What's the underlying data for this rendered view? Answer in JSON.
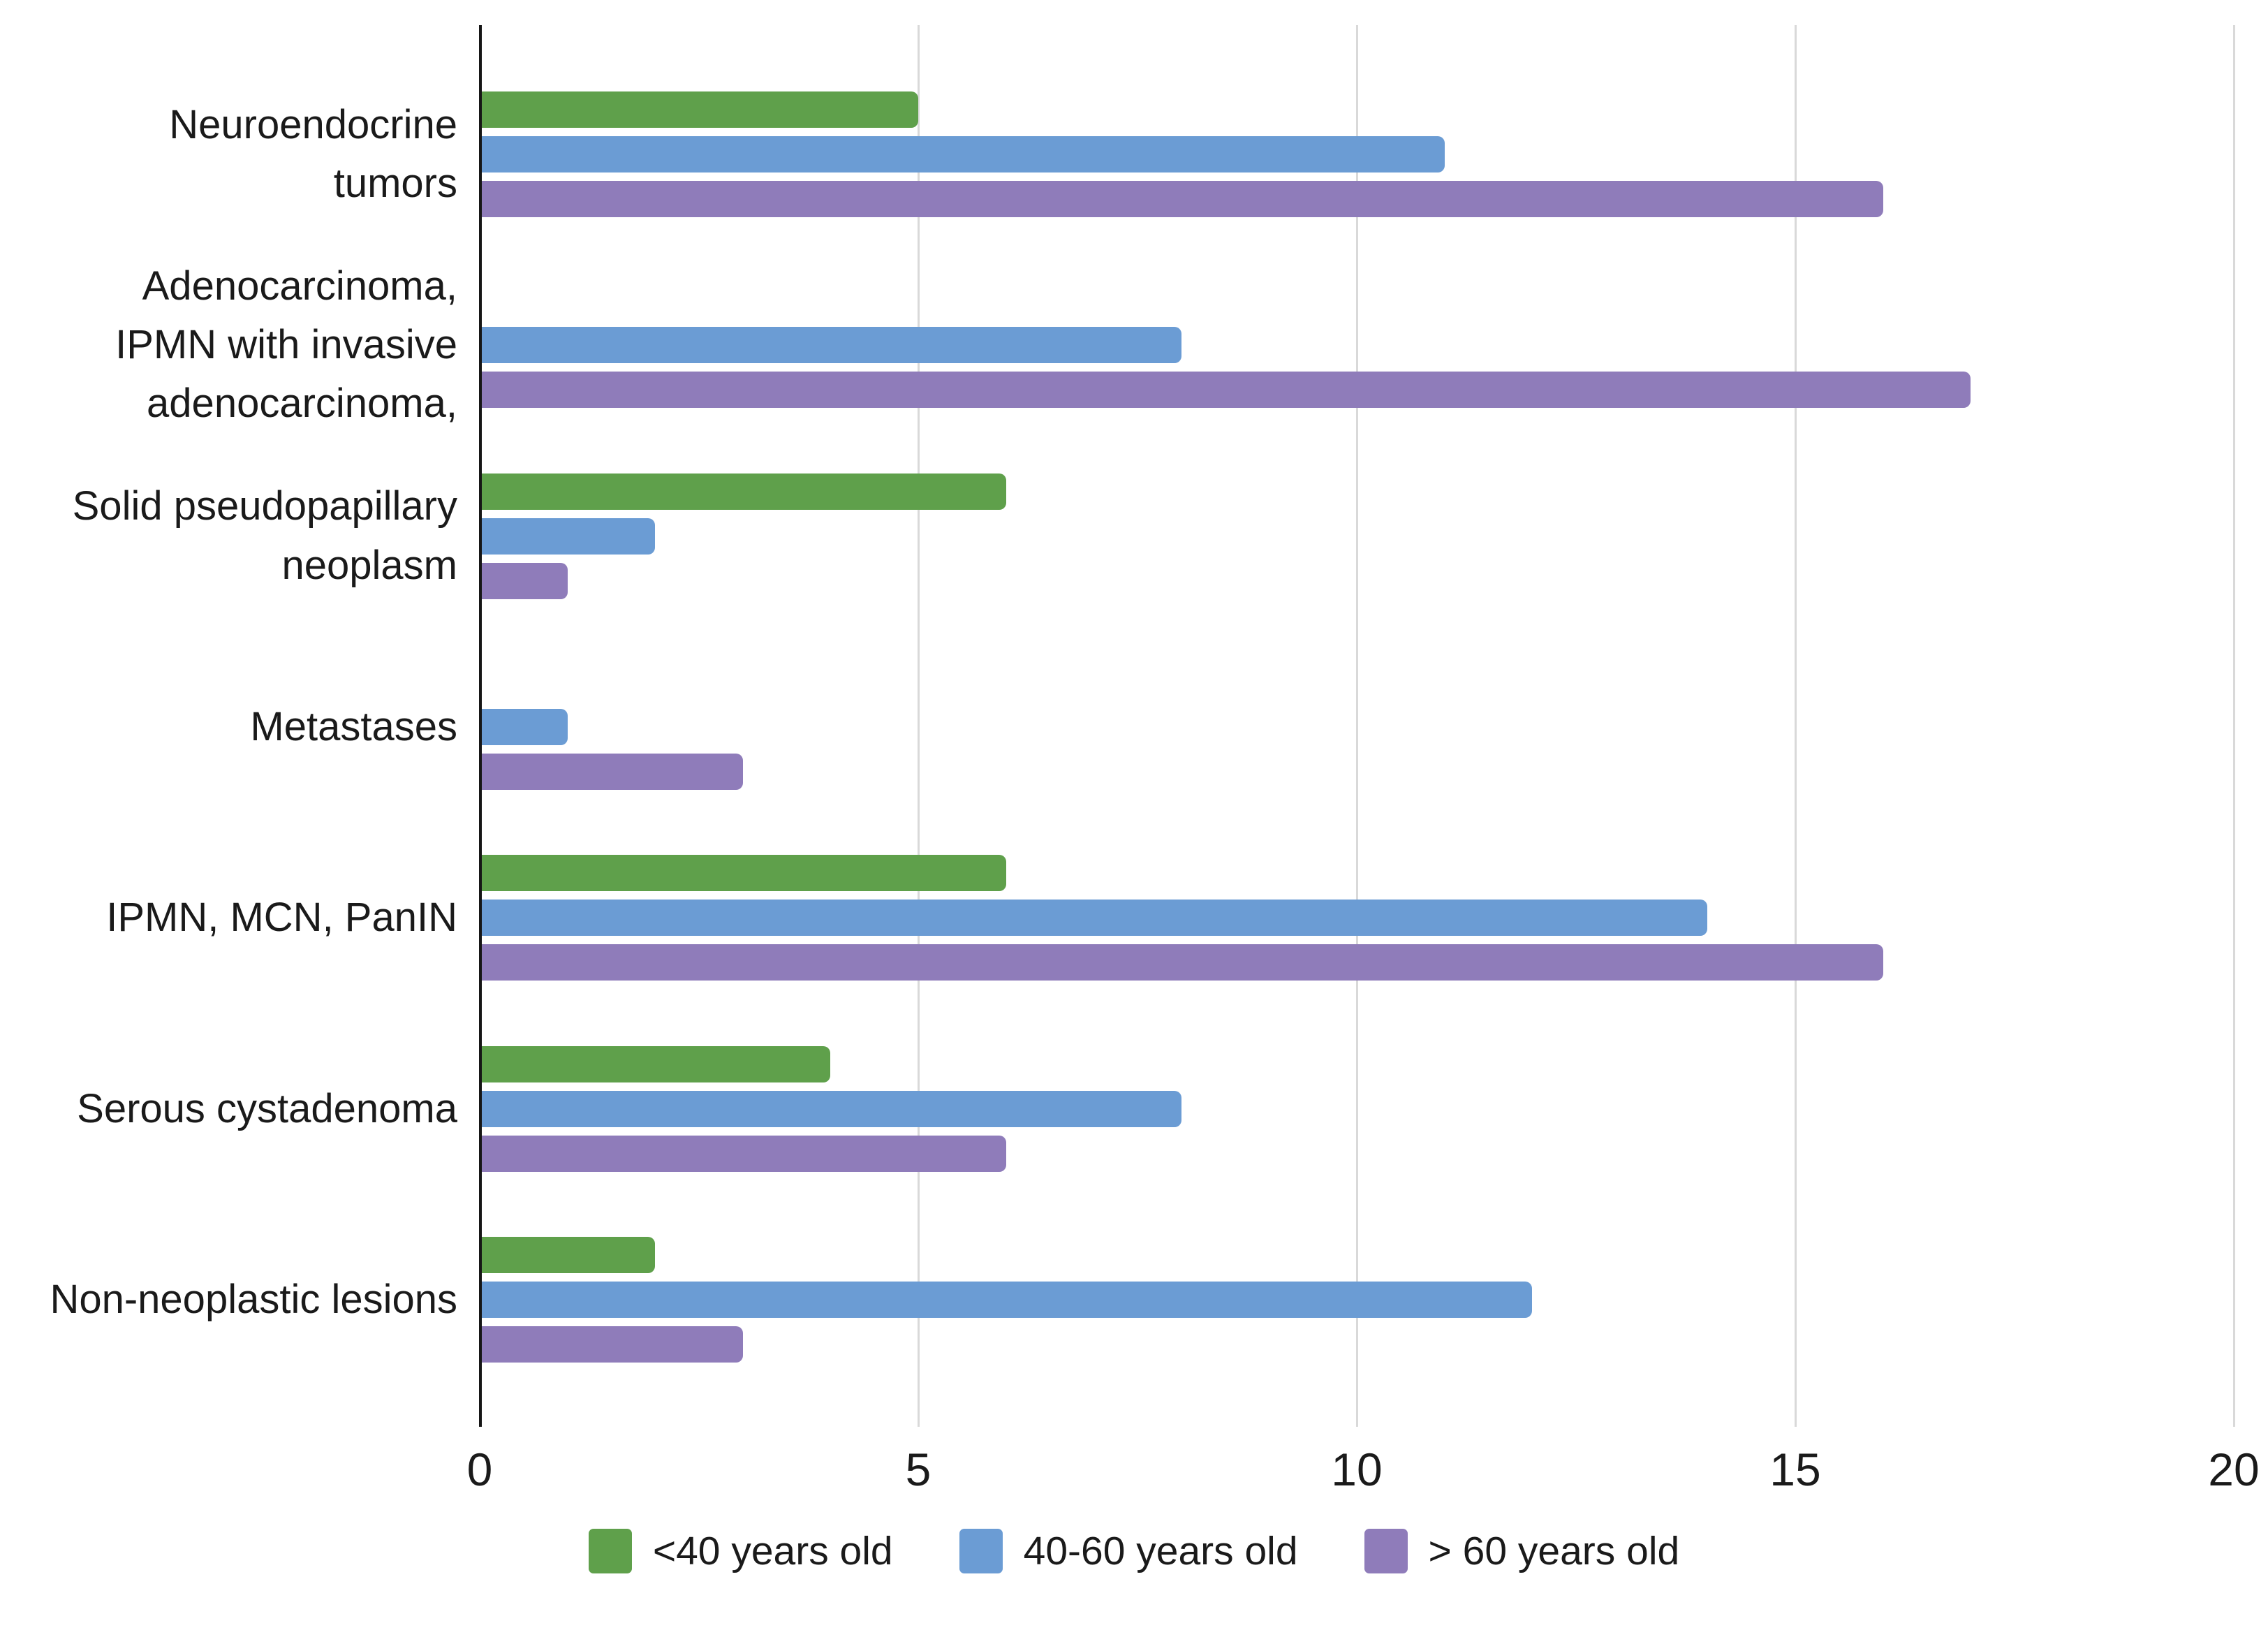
{
  "chart_data": {
    "type": "bar",
    "orientation": "horizontal",
    "title": "",
    "xlabel": "",
    "ylabel": "",
    "xlim": [
      0,
      20
    ],
    "xticks": [
      "0",
      "5",
      "10",
      "15",
      "20"
    ],
    "grid": "vertical",
    "legend_position": "bottom",
    "categories": [
      "Neuroendocrine\ntumors",
      "Adenocarcinoma,\nIPMN with invasive\nadenocarcinoma,",
      "Solid pseudopapillary\nneoplasm",
      "Metastases",
      "IPMN, MCN, PanIN",
      "Serous cystadenoma",
      "Non-neoplastic lesions"
    ],
    "series": [
      {
        "name": "<40 years old",
        "color": "#5fa04b",
        "values": [
          5,
          0,
          6,
          0,
          6,
          4,
          2
        ]
      },
      {
        "name": "40-60 years old",
        "color": "#6b9cd4",
        "values": [
          11,
          8,
          2,
          1,
          14,
          8,
          12
        ]
      },
      {
        "name": "> 60 years old",
        "color": "#8f7cba",
        "values": [
          16,
          17,
          1,
          3,
          16,
          6,
          3
        ]
      }
    ],
    "colors": {
      "axis_line": "#161616",
      "gridline": "#d9d9d9",
      "text": "#1a1a1a",
      "background": "#ffffff"
    }
  }
}
